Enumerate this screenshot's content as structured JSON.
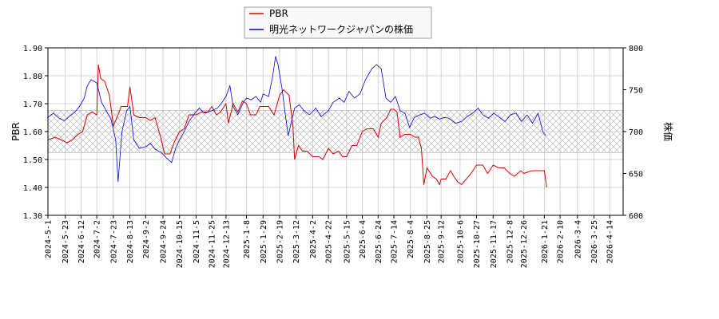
{
  "chart_data": {
    "type": "line",
    "legend": {
      "placement": "top-center",
      "entries": [
        {
          "name": "PBR",
          "color": "#dd0000"
        },
        {
          "name": "明光ネットワークジャパンの株価",
          "color": "#0000dd"
        }
      ]
    },
    "ylabel_left": "PBR",
    "ylabel_right": "株価",
    "ylim_left": [
      1.3,
      1.9
    ],
    "ylim_right": [
      600,
      800
    ],
    "yticks_left": [
      "1.30",
      "1.40",
      "1.50",
      "1.60",
      "1.70",
      "1.80",
      "1.90"
    ],
    "yticks_right": [
      "600",
      "650",
      "700",
      "750",
      "800"
    ],
    "grid": true,
    "hatched_band_right": [
      675,
      725
    ],
    "x_range": [
      "2024-05-01",
      "2026-05-01"
    ],
    "xticks": [
      "2024-5-1",
      "2024-5-23",
      "2024-6-12",
      "2024-7-2",
      "2024-7-23",
      "2024-8-13",
      "2024-9-2",
      "2024-9-24",
      "2024-10-15",
      "2024-11-5",
      "2024-11-25",
      "2024-12-13",
      "2025-1-8",
      "2025-1-29",
      "2025-2-19",
      "2025-3-12",
      "2025-4-2",
      "2025-4-22",
      "2025-5-15",
      "2025-6-4",
      "2025-6-24",
      "2025-7-14",
      "2025-8-4",
      "2025-8-25",
      "2025-9-12",
      "2025-10-6",
      "2025-10-27",
      "2025-11-17",
      "2025-12-8",
      "2025-12-26",
      "2026-1-21",
      "2026-2-10",
      "2026-3-4",
      "2026-3-25",
      "2026-4-14"
    ],
    "series": [
      {
        "name": "PBR",
        "axis": "left",
        "color": "#dd0000",
        "points": [
          [
            "2024-05-01",
            1.57
          ],
          [
            "2024-05-10",
            1.58
          ],
          [
            "2024-05-18",
            1.57
          ],
          [
            "2024-05-25",
            1.56
          ],
          [
            "2024-06-01",
            1.57
          ],
          [
            "2024-06-08",
            1.59
          ],
          [
            "2024-06-14",
            1.6
          ],
          [
            "2024-06-20",
            1.66
          ],
          [
            "2024-06-26",
            1.67
          ],
          [
            "2024-07-02",
            1.66
          ],
          [
            "2024-07-04",
            1.84
          ],
          [
            "2024-07-07",
            1.79
          ],
          [
            "2024-07-12",
            1.78
          ],
          [
            "2024-07-18",
            1.73
          ],
          [
            "2024-07-23",
            1.62
          ],
          [
            "2024-07-29",
            1.66
          ],
          [
            "2024-08-02",
            1.69
          ],
          [
            "2024-08-10",
            1.69
          ],
          [
            "2024-08-13",
            1.76
          ],
          [
            "2024-08-18",
            1.66
          ],
          [
            "2024-08-25",
            1.65
          ],
          [
            "2024-09-02",
            1.65
          ],
          [
            "2024-09-08",
            1.64
          ],
          [
            "2024-09-14",
            1.65
          ],
          [
            "2024-09-22",
            1.57
          ],
          [
            "2024-09-26",
            1.52
          ],
          [
            "2024-10-03",
            1.52
          ],
          [
            "2024-10-08",
            1.56
          ],
          [
            "2024-10-15",
            1.6
          ],
          [
            "2024-10-21",
            1.61
          ],
          [
            "2024-10-27",
            1.66
          ],
          [
            "2024-11-05",
            1.66
          ],
          [
            "2024-11-12",
            1.67
          ],
          [
            "2024-11-20",
            1.67
          ],
          [
            "2024-11-25",
            1.69
          ],
          [
            "2024-12-01",
            1.66
          ],
          [
            "2024-12-06",
            1.67
          ],
          [
            "2024-12-13",
            1.7
          ],
          [
            "2024-12-16",
            1.63
          ],
          [
            "2024-12-22",
            1.7
          ],
          [
            "2024-12-28",
            1.67
          ],
          [
            "2025-01-03",
            1.71
          ],
          [
            "2025-01-08",
            1.7
          ],
          [
            "2025-01-13",
            1.66
          ],
          [
            "2025-01-20",
            1.66
          ],
          [
            "2025-01-25",
            1.69
          ],
          [
            "2025-01-29",
            1.69
          ],
          [
            "2025-02-05",
            1.69
          ],
          [
            "2025-02-12",
            1.66
          ],
          [
            "2025-02-19",
            1.73
          ],
          [
            "2025-02-24",
            1.75
          ],
          [
            "2025-03-03",
            1.73
          ],
          [
            "2025-03-08",
            1.62
          ],
          [
            "2025-03-10",
            1.5
          ],
          [
            "2025-03-15",
            1.55
          ],
          [
            "2025-03-20",
            1.53
          ],
          [
            "2025-03-26",
            1.53
          ],
          [
            "2025-04-02",
            1.51
          ],
          [
            "2025-04-10",
            1.51
          ],
          [
            "2025-04-15",
            1.5
          ],
          [
            "2025-04-22",
            1.54
          ],
          [
            "2025-04-28",
            1.52
          ],
          [
            "2025-05-05",
            1.53
          ],
          [
            "2025-05-10",
            1.51
          ],
          [
            "2025-05-15",
            1.51
          ],
          [
            "2025-05-22",
            1.55
          ],
          [
            "2025-05-28",
            1.55
          ],
          [
            "2025-06-04",
            1.6
          ],
          [
            "2025-06-10",
            1.61
          ],
          [
            "2025-06-18",
            1.61
          ],
          [
            "2025-06-24",
            1.58
          ],
          [
            "2025-06-28",
            1.63
          ],
          [
            "2025-07-05",
            1.65
          ],
          [
            "2025-07-10",
            1.68
          ],
          [
            "2025-07-14",
            1.68
          ],
          [
            "2025-07-18",
            1.67
          ],
          [
            "2025-07-22",
            1.58
          ],
          [
            "2025-07-28",
            1.59
          ],
          [
            "2025-08-04",
            1.59
          ],
          [
            "2025-08-10",
            1.58
          ],
          [
            "2025-08-14",
            1.58
          ],
          [
            "2025-08-18",
            1.54
          ],
          [
            "2025-08-21",
            1.41
          ],
          [
            "2025-08-25",
            1.47
          ],
          [
            "2025-09-01",
            1.44
          ],
          [
            "2025-09-06",
            1.43
          ],
          [
            "2025-09-10",
            1.41
          ],
          [
            "2025-09-12",
            1.43
          ],
          [
            "2025-09-18",
            1.43
          ],
          [
            "2025-09-24",
            1.46
          ],
          [
            "2025-09-28",
            1.44
          ],
          [
            "2025-10-03",
            1.42
          ],
          [
            "2025-10-08",
            1.41
          ],
          [
            "2025-10-14",
            1.43
          ],
          [
            "2025-10-20",
            1.45
          ],
          [
            "2025-10-27",
            1.48
          ],
          [
            "2025-11-04",
            1.48
          ],
          [
            "2025-11-10",
            1.45
          ],
          [
            "2025-11-17",
            1.48
          ],
          [
            "2025-11-24",
            1.47
          ],
          [
            "2025-12-01",
            1.47
          ],
          [
            "2025-12-08",
            1.45
          ],
          [
            "2025-12-14",
            1.44
          ],
          [
            "2025-12-22",
            1.46
          ],
          [
            "2025-12-26",
            1.45
          ],
          [
            "2026-01-05",
            1.46
          ],
          [
            "2026-01-15",
            1.46
          ],
          [
            "2026-01-21",
            1.46
          ],
          [
            "2026-01-24",
            1.4
          ]
        ]
      },
      {
        "name": "明光ネットワークジャパンの株価",
        "axis": "right",
        "color": "#0000dd",
        "points": [
          [
            "2024-05-01",
            717
          ],
          [
            "2024-05-08",
            722
          ],
          [
            "2024-05-15",
            716
          ],
          [
            "2024-05-22",
            713
          ],
          [
            "2024-05-28",
            718
          ],
          [
            "2024-06-04",
            723
          ],
          [
            "2024-06-10",
            730
          ],
          [
            "2024-06-16",
            740
          ],
          [
            "2024-06-20",
            755
          ],
          [
            "2024-06-25",
            762
          ],
          [
            "2024-07-02",
            758
          ],
          [
            "2024-07-08",
            735
          ],
          [
            "2024-07-14",
            725
          ],
          [
            "2024-07-20",
            715
          ],
          [
            "2024-07-26",
            690
          ],
          [
            "2024-07-29",
            640
          ],
          [
            "2024-08-03",
            700
          ],
          [
            "2024-08-09",
            725
          ],
          [
            "2024-08-13",
            730
          ],
          [
            "2024-08-18",
            690
          ],
          [
            "2024-08-25",
            680
          ],
          [
            "2024-09-02",
            682
          ],
          [
            "2024-09-08",
            686
          ],
          [
            "2024-09-14",
            679
          ],
          [
            "2024-09-22",
            675
          ],
          [
            "2024-09-29",
            668
          ],
          [
            "2024-10-05",
            663
          ],
          [
            "2024-10-10",
            680
          ],
          [
            "2024-10-15",
            690
          ],
          [
            "2024-10-21",
            700
          ],
          [
            "2024-10-27",
            712
          ],
          [
            "2024-11-02",
            720
          ],
          [
            "2024-11-09",
            728
          ],
          [
            "2024-11-16",
            722
          ],
          [
            "2024-11-25",
            725
          ],
          [
            "2024-12-02",
            728
          ],
          [
            "2024-12-08",
            735
          ],
          [
            "2024-12-13",
            742
          ],
          [
            "2024-12-18",
            755
          ],
          [
            "2024-12-22",
            730
          ],
          [
            "2024-12-28",
            720
          ],
          [
            "2025-01-04",
            735
          ],
          [
            "2025-01-08",
            740
          ],
          [
            "2025-01-14",
            738
          ],
          [
            "2025-01-20",
            742
          ],
          [
            "2025-01-26",
            735
          ],
          [
            "2025-01-29",
            745
          ],
          [
            "2025-02-05",
            742
          ],
          [
            "2025-02-10",
            765
          ],
          [
            "2025-02-14",
            790
          ],
          [
            "2025-02-17",
            780
          ],
          [
            "2025-02-22",
            752
          ],
          [
            "2025-02-26",
            722
          ],
          [
            "2025-03-02",
            695
          ],
          [
            "2025-03-06",
            712
          ],
          [
            "2025-03-10",
            728
          ],
          [
            "2025-03-16",
            732
          ],
          [
            "2025-03-22",
            725
          ],
          [
            "2025-03-29",
            720
          ],
          [
            "2025-04-06",
            728
          ],
          [
            "2025-04-13",
            718
          ],
          [
            "2025-04-22",
            725
          ],
          [
            "2025-04-28",
            735
          ],
          [
            "2025-05-06",
            740
          ],
          [
            "2025-05-12",
            735
          ],
          [
            "2025-05-18",
            748
          ],
          [
            "2025-05-25",
            740
          ],
          [
            "2025-06-01",
            745
          ],
          [
            "2025-06-08",
            762
          ],
          [
            "2025-06-16",
            775
          ],
          [
            "2025-06-22",
            780
          ],
          [
            "2025-06-28",
            775
          ],
          [
            "2025-07-04",
            740
          ],
          [
            "2025-07-10",
            735
          ],
          [
            "2025-07-16",
            742
          ],
          [
            "2025-07-22",
            725
          ],
          [
            "2025-07-28",
            722
          ],
          [
            "2025-08-03",
            705
          ],
          [
            "2025-08-09",
            717
          ],
          [
            "2025-08-16",
            720
          ],
          [
            "2025-08-22",
            722
          ],
          [
            "2025-08-29",
            716
          ],
          [
            "2025-09-04",
            718
          ],
          [
            "2025-09-10",
            715
          ],
          [
            "2025-09-16",
            717
          ],
          [
            "2025-09-22",
            716
          ],
          [
            "2025-09-30",
            710
          ],
          [
            "2025-10-08",
            712
          ],
          [
            "2025-10-15",
            718
          ],
          [
            "2025-10-22",
            722
          ],
          [
            "2025-10-29",
            728
          ],
          [
            "2025-11-04",
            720
          ],
          [
            "2025-11-11",
            716
          ],
          [
            "2025-11-18",
            722
          ],
          [
            "2025-11-25",
            717
          ],
          [
            "2025-12-02",
            712
          ],
          [
            "2025-12-09",
            720
          ],
          [
            "2025-12-16",
            722
          ],
          [
            "2025-12-23",
            712
          ],
          [
            "2025-12-30",
            720
          ],
          [
            "2026-01-06",
            710
          ],
          [
            "2026-01-13",
            722
          ],
          [
            "2026-01-19",
            700
          ],
          [
            "2026-01-23",
            695
          ]
        ]
      }
    ]
  }
}
